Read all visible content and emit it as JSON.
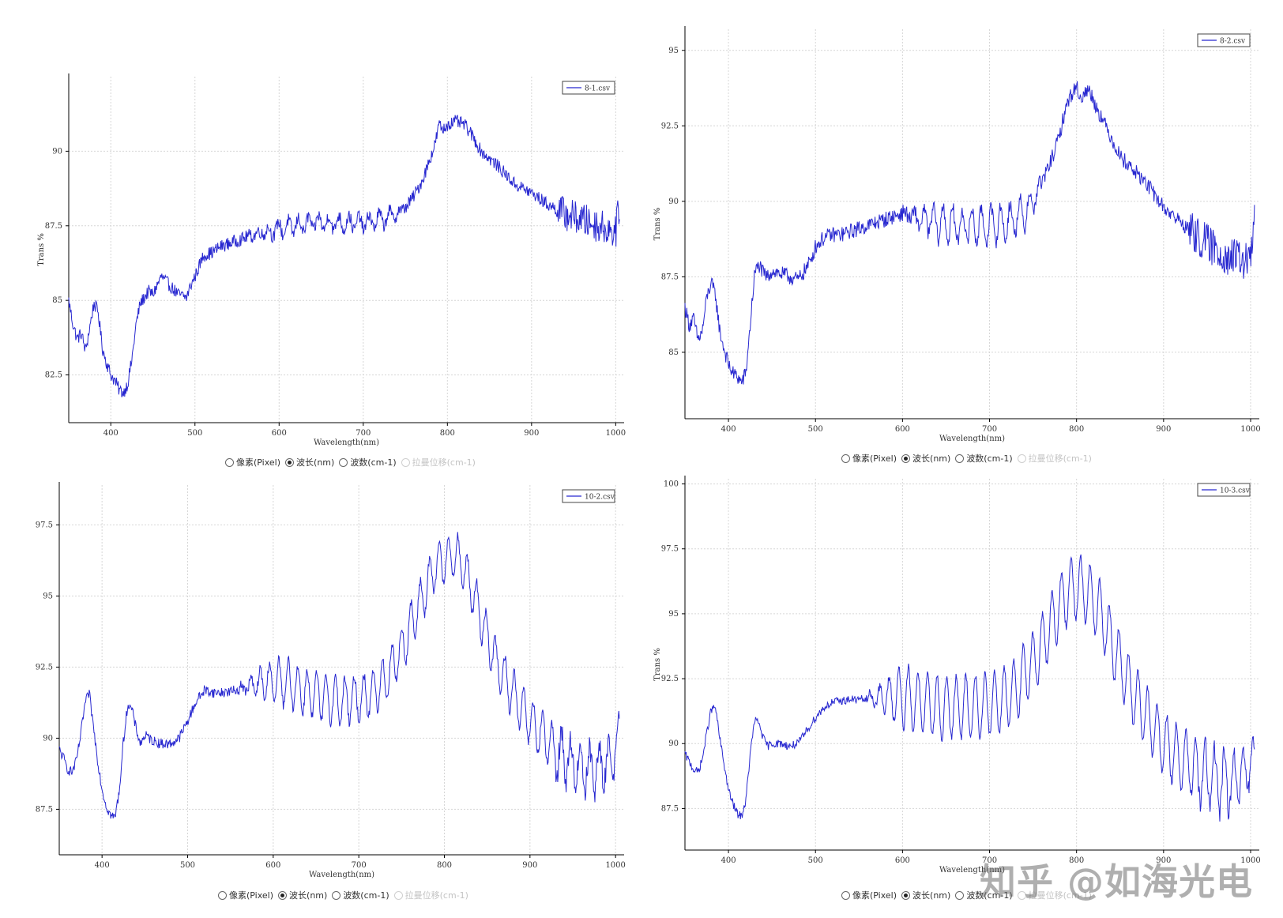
{
  "watermark": "知乎 @如海光电",
  "colors": {
    "series": "#2727d0",
    "grid": "#d6d6d6",
    "axis": "#000000",
    "text": "#333333"
  },
  "radio_options": [
    {
      "label": "像素(Pixel)",
      "checked": false,
      "enabled": true
    },
    {
      "label": "波长(nm)",
      "checked": true,
      "enabled": true
    },
    {
      "label": "波数(cm-1)",
      "checked": false,
      "enabled": true
    },
    {
      "label": "拉曼位移(cm-1)",
      "checked": false,
      "enabled": false
    }
  ],
  "chart_data": [
    {
      "type": "line",
      "title": "",
      "legend": "8-1.csv",
      "legend_position": "top-right",
      "xlabel": "Wavelength(nm)",
      "ylabel": "Trans %",
      "xlim": [
        350,
        1010
      ],
      "ylim": [
        80.9,
        92.5
      ],
      "grid": true,
      "xticks": [
        400,
        500,
        600,
        700,
        800,
        900,
        1000
      ],
      "yticks": [
        82.5,
        85,
        87.5,
        90
      ],
      "ytick_labels": [
        "82.5",
        "85",
        "87.5",
        "90"
      ],
      "series": [
        {
          "x": [
            350,
            355,
            360,
            365,
            370,
            375,
            380,
            385,
            390,
            395,
            400,
            405,
            410,
            415,
            420,
            425,
            430,
            435,
            440,
            445,
            450,
            460,
            470,
            480,
            490,
            495,
            500,
            510,
            520,
            530,
            540,
            550,
            560,
            570,
            580,
            590,
            600,
            620,
            640,
            660,
            680,
            700,
            720,
            740,
            750,
            760,
            770,
            780,
            785,
            790,
            795,
            800,
            810,
            820,
            830,
            840,
            860,
            880,
            900,
            920,
            940,
            960,
            980,
            1000,
            1005
          ],
          "y": [
            85.0,
            84.2,
            83.7,
            83.9,
            83.3,
            84.1,
            84.9,
            84.6,
            83.4,
            82.9,
            82.5,
            82.3,
            82.0,
            81.9,
            82.2,
            83.0,
            84.2,
            84.9,
            85.1,
            85.3,
            85.2,
            85.8,
            85.5,
            85.2,
            85.1,
            85.5,
            85.8,
            86.5,
            86.6,
            86.8,
            86.9,
            87.0,
            87.1,
            87.2,
            87.3,
            87.3,
            87.4,
            87.5,
            87.6,
            87.6,
            87.6,
            87.6,
            87.7,
            87.9,
            88.1,
            88.5,
            89.0,
            89.8,
            90.2,
            90.9,
            90.7,
            90.9,
            91.0,
            90.9,
            90.5,
            90.0,
            89.5,
            88.9,
            88.6,
            88.2,
            87.9,
            87.7,
            87.5,
            87.3,
            88.3
          ],
          "noise": 0.22,
          "osc_amp": 0.25,
          "osc_range": [
            560,
            745
          ],
          "osc_period": 12
        }
      ]
    },
    {
      "type": "line",
      "title": "",
      "legend": "8-2.csv",
      "legend_position": "top-right",
      "xlabel": "Wavelength(nm)",
      "ylabel": "Trans %",
      "xlim": [
        350,
        1010
      ],
      "ylim": [
        82.8,
        95.7
      ],
      "grid": true,
      "xticks": [
        400,
        500,
        600,
        700,
        800,
        900,
        1000
      ],
      "yticks": [
        85,
        87.5,
        90,
        92.5,
        95
      ],
      "ytick_labels": [
        "85",
        "87.5",
        "90",
        "92.5",
        "95"
      ],
      "series": [
        {
          "x": [
            350,
            355,
            360,
            365,
            370,
            375,
            380,
            385,
            390,
            395,
            400,
            405,
            410,
            415,
            420,
            425,
            430,
            435,
            440,
            445,
            450,
            460,
            470,
            480,
            490,
            495,
            500,
            510,
            520,
            530,
            540,
            560,
            580,
            600,
            620,
            640,
            660,
            680,
            700,
            720,
            740,
            750,
            760,
            770,
            780,
            785,
            790,
            795,
            800,
            805,
            810,
            815,
            820,
            830,
            840,
            850,
            860,
            880,
            900,
            920,
            940,
            960,
            980,
            1000,
            1005
          ],
          "y": [
            86.5,
            85.9,
            86.1,
            85.4,
            85.7,
            86.8,
            87.3,
            86.9,
            85.7,
            85.1,
            84.6,
            84.3,
            84.2,
            84.0,
            84.3,
            85.9,
            87.6,
            87.9,
            87.6,
            87.5,
            87.7,
            87.6,
            87.5,
            87.4,
            87.8,
            88.1,
            88.5,
            88.8,
            88.9,
            88.9,
            89.0,
            89.2,
            89.4,
            89.6,
            89.4,
            89.3,
            89.2,
            89.2,
            89.2,
            89.3,
            89.6,
            90.0,
            90.6,
            91.3,
            92.1,
            92.8,
            93.3,
            93.6,
            93.8,
            93.4,
            93.6,
            93.7,
            93.3,
            92.7,
            92.1,
            91.5,
            91.2,
            90.6,
            89.8,
            89.3,
            88.8,
            88.4,
            88.1,
            88.0,
            89.6
          ],
          "noise": 0.26,
          "osc_amp": 0.55,
          "osc_range": [
            600,
            760
          ],
          "osc_period": 11
        }
      ]
    },
    {
      "type": "line",
      "title": "",
      "legend": "10-2.csv",
      "legend_position": "top-right",
      "xlabel": "Wavelength(nm)",
      "ylabel": "",
      "xlim": [
        350,
        1010
      ],
      "ylim": [
        85.9,
        98.9
      ],
      "grid": true,
      "xticks": [
        400,
        500,
        600,
        700,
        800,
        900,
        1000
      ],
      "yticks": [
        87.5,
        90,
        92.5,
        95,
        97.5
      ],
      "ytick_labels": [
        "87.5",
        "90",
        "92.5",
        "95",
        "97.5"
      ],
      "series": [
        {
          "x": [
            350,
            355,
            360,
            365,
            370,
            375,
            380,
            385,
            390,
            395,
            400,
            405,
            410,
            415,
            420,
            425,
            430,
            435,
            440,
            445,
            450,
            460,
            470,
            480,
            490,
            500,
            510,
            520,
            530,
            540,
            560,
            580,
            600,
            620,
            640,
            660,
            680,
            700,
            710,
            720,
            730,
            740,
            750,
            760,
            770,
            780,
            790,
            800,
            810,
            820,
            830,
            840,
            850,
            860,
            870,
            880,
            890,
            900,
            920,
            940,
            960,
            980,
            1000,
            1005
          ],
          "y": [
            89.6,
            89.3,
            88.9,
            88.8,
            89.2,
            90.1,
            91.2,
            91.6,
            90.4,
            89.2,
            88.2,
            87.6,
            87.3,
            87.2,
            88.1,
            89.9,
            91.2,
            91.0,
            90.3,
            89.8,
            90.1,
            89.9,
            89.8,
            89.8,
            90.0,
            90.6,
            91.3,
            91.7,
            91.6,
            91.6,
            91.7,
            91.9,
            92.0,
            91.9,
            91.6,
            91.4,
            91.3,
            91.4,
            91.5,
            91.7,
            92.0,
            92.6,
            93.1,
            93.9,
            94.6,
            95.4,
            96.0,
            96.3,
            96.4,
            96.2,
            95.4,
            94.5,
            93.6,
            92.7,
            92.1,
            91.6,
            91.0,
            90.6,
            89.9,
            89.3,
            89.0,
            88.9,
            89.4,
            90.6
          ],
          "noise": 0.18,
          "osc_amp": 0.8,
          "osc_range": [
            560,
            1005
          ],
          "osc_period": 11
        }
      ]
    },
    {
      "type": "line",
      "title": "",
      "legend": "10-3.csv",
      "legend_position": "top-right",
      "xlabel": "Wavelength(nm)",
      "ylabel": "Trans %",
      "xlim": [
        350,
        1010
      ],
      "ylim": [
        85.9,
        100.2
      ],
      "grid": true,
      "xticks": [
        400,
        500,
        600,
        700,
        800,
        900,
        1000
      ],
      "yticks": [
        87.5,
        90,
        92.5,
        95,
        97.5,
        100
      ],
      "ytick_labels": [
        "87.5",
        "90",
        "92.5",
        "95",
        "97.5",
        "100"
      ],
      "series": [
        {
          "x": [
            350,
            355,
            360,
            365,
            370,
            375,
            380,
            385,
            390,
            395,
            400,
            405,
            410,
            415,
            420,
            425,
            430,
            435,
            440,
            445,
            450,
            460,
            470,
            480,
            490,
            500,
            510,
            520,
            540,
            560,
            580,
            600,
            620,
            640,
            660,
            680,
            700,
            720,
            730,
            740,
            750,
            760,
            770,
            780,
            790,
            800,
            810,
            820,
            830,
            840,
            850,
            860,
            870,
            880,
            890,
            900,
            920,
            940,
            960,
            980,
            1000,
            1005
          ],
          "y": [
            89.6,
            89.3,
            89.0,
            88.9,
            89.4,
            90.4,
            91.3,
            91.4,
            90.2,
            89.2,
            88.2,
            87.7,
            87.3,
            87.2,
            87.8,
            89.6,
            90.9,
            90.8,
            90.2,
            89.9,
            90.0,
            90.0,
            89.9,
            90.0,
            90.5,
            91.0,
            91.4,
            91.6,
            91.7,
            91.7,
            91.8,
            91.8,
            91.6,
            91.4,
            91.4,
            91.4,
            91.5,
            91.8,
            92.1,
            92.6,
            93.1,
            93.8,
            94.5,
            95.3,
            95.8,
            96.0,
            95.9,
            95.5,
            94.8,
            93.9,
            93.1,
            92.3,
            91.6,
            91.1,
            90.5,
            90.0,
            89.4,
            88.9,
            88.6,
            88.5,
            89.0,
            89.8
          ],
          "noise": 0.16,
          "osc_amp": 1.2,
          "osc_range": [
            560,
            1005
          ],
          "osc_period": 11
        }
      ]
    }
  ]
}
